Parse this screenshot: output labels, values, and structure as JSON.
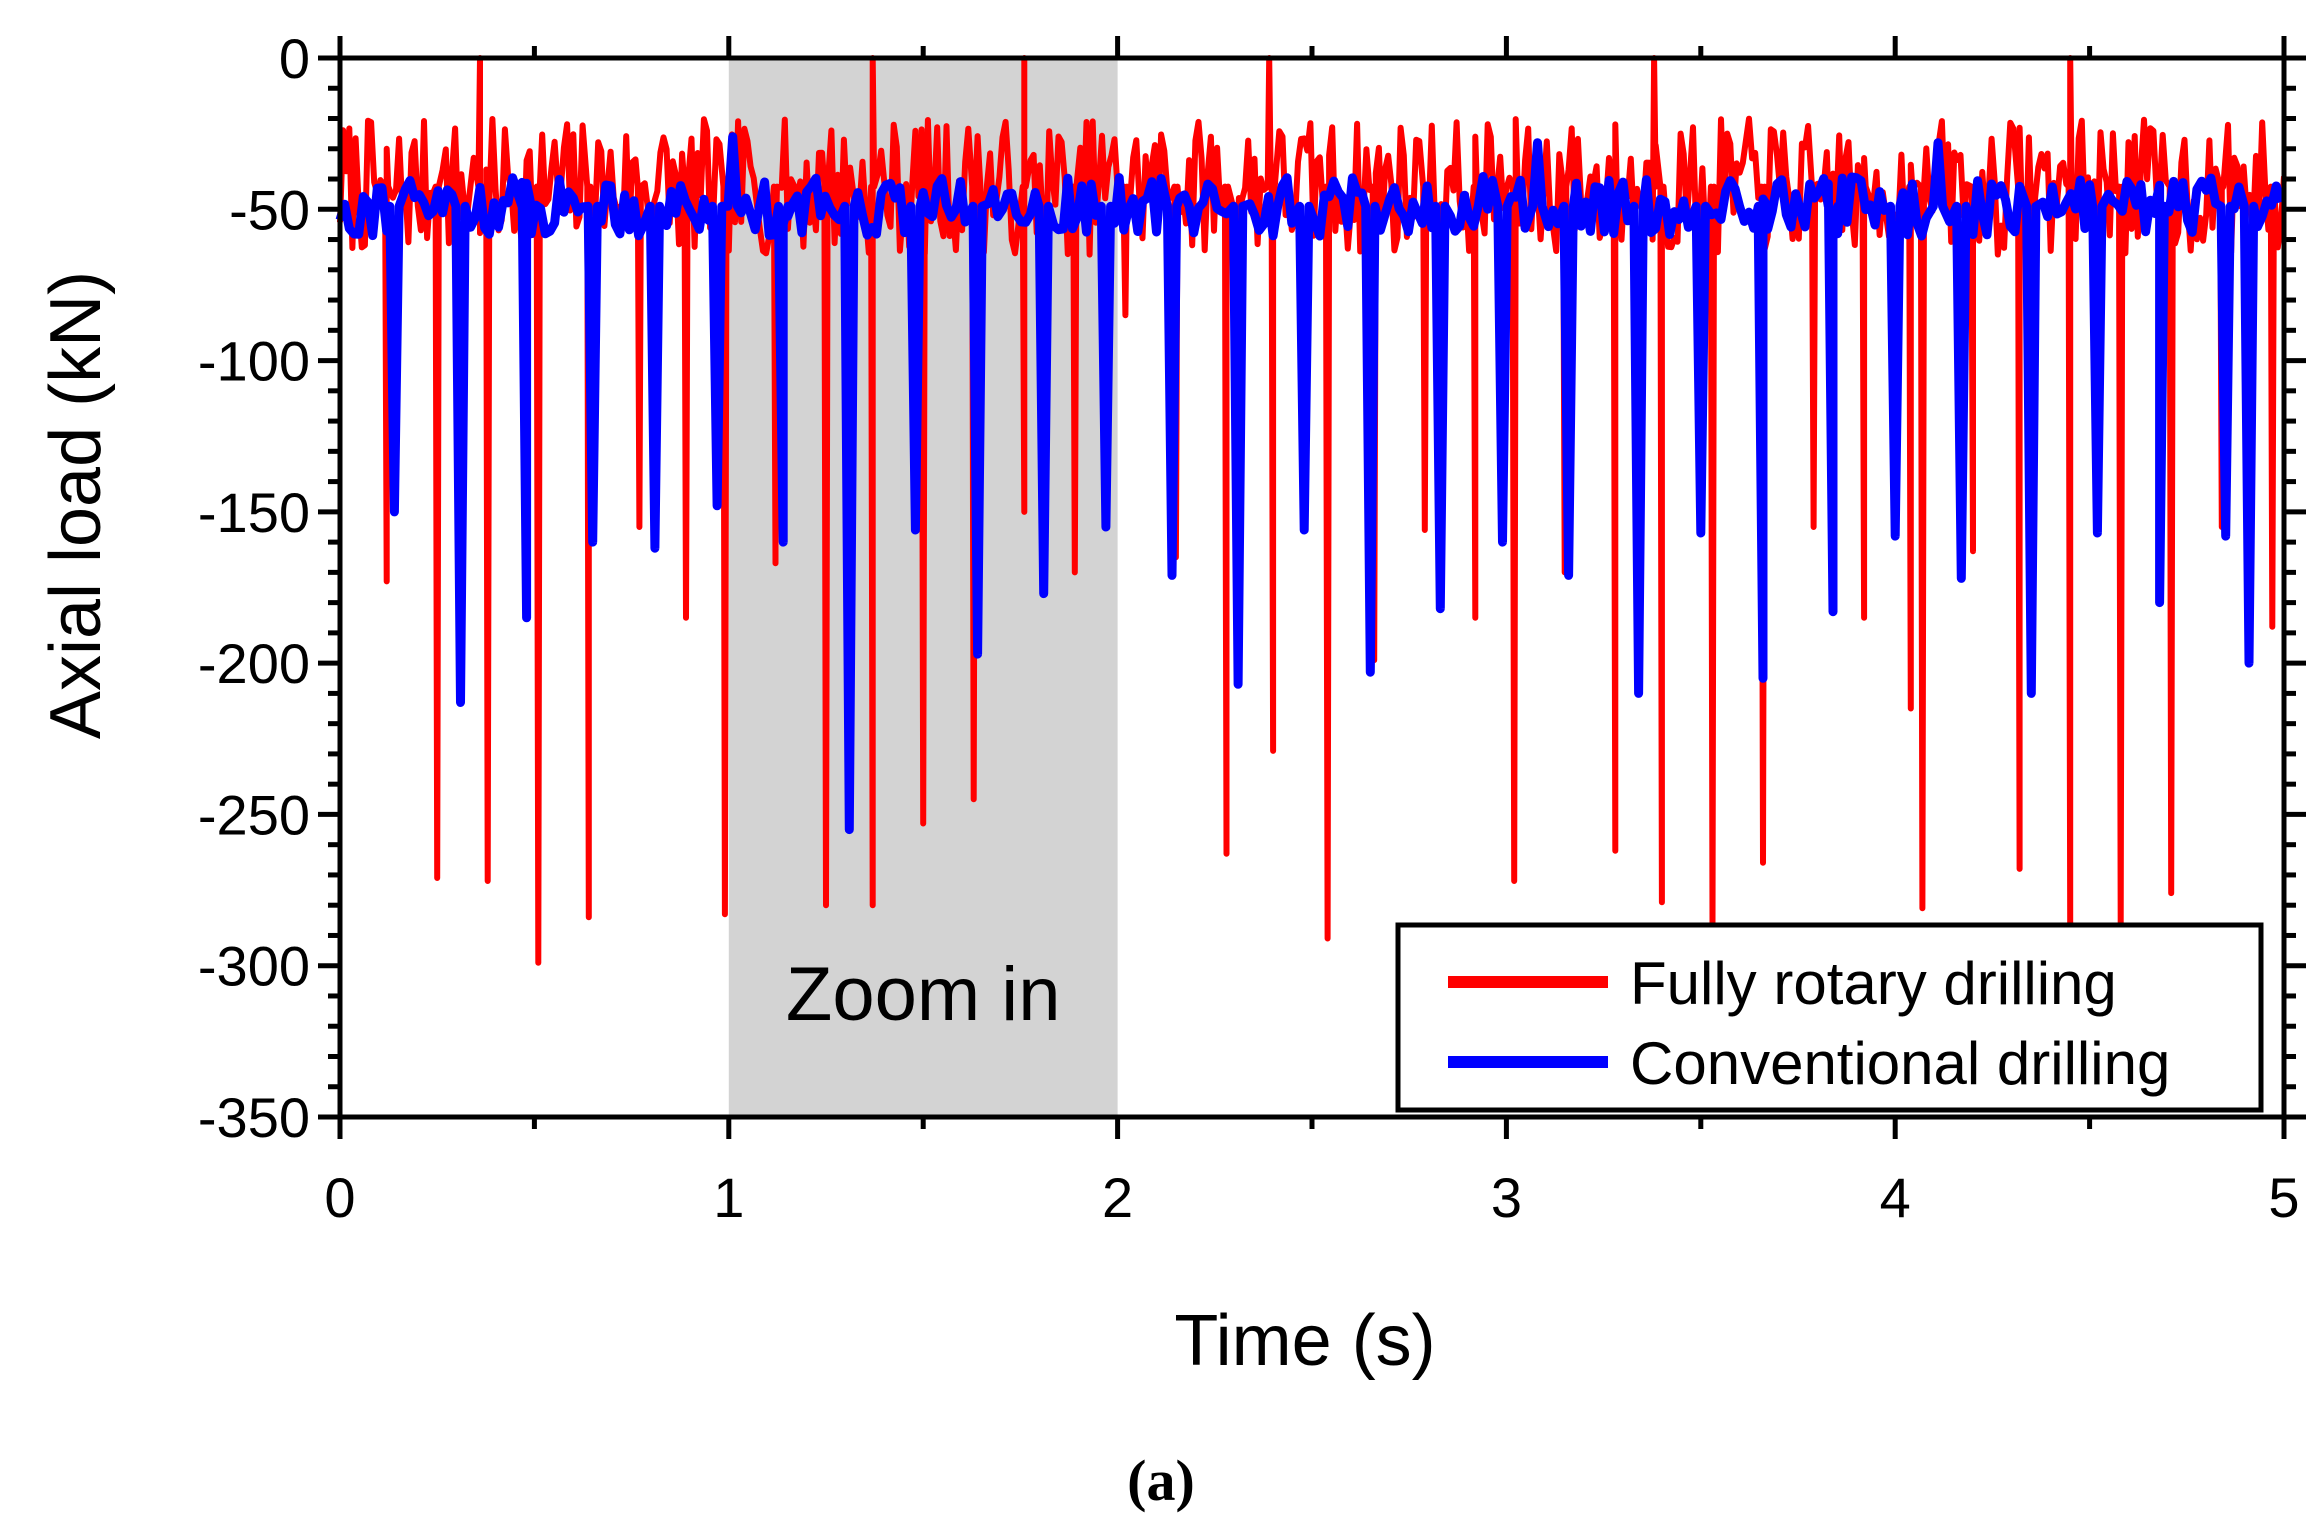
{
  "chart_data": {
    "type": "line",
    "title": "",
    "xlabel": "Time (s)",
    "ylabel": "Axial load (kN)",
    "xlim": [
      0,
      5
    ],
    "ylim": [
      -350,
      0
    ],
    "xticks": [
      "0",
      "1",
      "2",
      "3",
      "4",
      "5"
    ],
    "yticks": [
      "0",
      "-50",
      "-100",
      "-150",
      "-200",
      "-250",
      "-300",
      "-350"
    ],
    "grid": false,
    "legend_position": "bottom-right",
    "highlight": {
      "x_range": [
        1,
        2
      ],
      "label": "Zoom in",
      "color": "#d3d3d3"
    },
    "caption": "(a)",
    "series": [
      {
        "name": "Fully rotary drilling",
        "color": "#ff0000",
        "baseline_range": [
          -65,
          -20
        ],
        "spikes": [
          {
            "t": 0.12,
            "v": -173
          },
          {
            "t": 0.25,
            "v": -271
          },
          {
            "t": 0.38,
            "v": -272
          },
          {
            "t": 0.51,
            "v": -299
          },
          {
            "t": 0.64,
            "v": -284
          },
          {
            "t": 0.77,
            "v": -155
          },
          {
            "t": 0.89,
            "v": -185
          },
          {
            "t": 0.99,
            "v": -283
          },
          {
            "t": 1.12,
            "v": -167
          },
          {
            "t": 1.25,
            "v": -280
          },
          {
            "t": 1.37,
            "v": -280
          },
          {
            "t": 1.5,
            "v": -253
          },
          {
            "t": 1.63,
            "v": -245
          },
          {
            "t": 1.76,
            "v": -150
          },
          {
            "t": 1.89,
            "v": -170
          },
          {
            "t": 2.02,
            "v": -85
          },
          {
            "t": 2.15,
            "v": -165
          },
          {
            "t": 2.28,
            "v": -263
          },
          {
            "t": 2.4,
            "v": -229
          },
          {
            "t": 2.54,
            "v": -291
          },
          {
            "t": 2.66,
            "v": -199
          },
          {
            "t": 2.79,
            "v": -156
          },
          {
            "t": 2.92,
            "v": -185
          },
          {
            "t": 3.02,
            "v": -272
          },
          {
            "t": 3.15,
            "v": -170
          },
          {
            "t": 3.28,
            "v": -262
          },
          {
            "t": 3.4,
            "v": -279
          },
          {
            "t": 3.53,
            "v": -288
          },
          {
            "t": 3.66,
            "v": -266
          },
          {
            "t": 3.79,
            "v": -155
          },
          {
            "t": 3.92,
            "v": -185
          },
          {
            "t": 4.04,
            "v": -215
          },
          {
            "t": 4.07,
            "v": -281
          },
          {
            "t": 4.2,
            "v": -163
          },
          {
            "t": 4.32,
            "v": -268
          },
          {
            "t": 4.45,
            "v": -287
          },
          {
            "t": 4.58,
            "v": -287
          },
          {
            "t": 4.71,
            "v": -276
          },
          {
            "t": 4.84,
            "v": -155
          },
          {
            "t": 4.97,
            "v": -188
          }
        ],
        "peaks": [
          {
            "t": 0.36,
            "v": 0
          },
          {
            "t": 1.37,
            "v": 0
          },
          {
            "t": 1.76,
            "v": 0
          },
          {
            "t": 2.39,
            "v": 0
          },
          {
            "t": 3.38,
            "v": 0
          },
          {
            "t": 4.45,
            "v": 0
          }
        ]
      },
      {
        "name": "Conventional drilling",
        "color": "#0000ff",
        "baseline_range": [
          -60,
          -38
        ],
        "spikes": [
          {
            "t": 0.14,
            "v": -150
          },
          {
            "t": 0.31,
            "v": -213
          },
          {
            "t": 0.48,
            "v": -185
          },
          {
            "t": 0.65,
            "v": -160
          },
          {
            "t": 0.81,
            "v": -162
          },
          {
            "t": 0.97,
            "v": -148
          },
          {
            "t": 1.14,
            "v": -160
          },
          {
            "t": 1.31,
            "v": -255
          },
          {
            "t": 1.48,
            "v": -156
          },
          {
            "t": 1.64,
            "v": -197
          },
          {
            "t": 1.81,
            "v": -177
          },
          {
            "t": 1.97,
            "v": -155
          },
          {
            "t": 2.14,
            "v": -171
          },
          {
            "t": 2.31,
            "v": -207
          },
          {
            "t": 2.48,
            "v": -156
          },
          {
            "t": 2.65,
            "v": -203
          },
          {
            "t": 2.83,
            "v": -182
          },
          {
            "t": 2.99,
            "v": -160
          },
          {
            "t": 3.16,
            "v": -171
          },
          {
            "t": 3.34,
            "v": -210
          },
          {
            "t": 3.5,
            "v": -157
          },
          {
            "t": 3.66,
            "v": -205
          },
          {
            "t": 3.84,
            "v": -183
          },
          {
            "t": 4.0,
            "v": -158
          },
          {
            "t": 4.17,
            "v": -172
          },
          {
            "t": 4.35,
            "v": -210
          },
          {
            "t": 4.52,
            "v": -157
          },
          {
            "t": 4.68,
            "v": -180
          },
          {
            "t": 4.85,
            "v": -158
          },
          {
            "t": 4.91,
            "v": -200
          }
        ],
        "peaks": [
          {
            "t": 1.01,
            "v": -26
          },
          {
            "t": 3.08,
            "v": -28
          },
          {
            "t": 4.11,
            "v": -28
          }
        ]
      }
    ]
  }
}
